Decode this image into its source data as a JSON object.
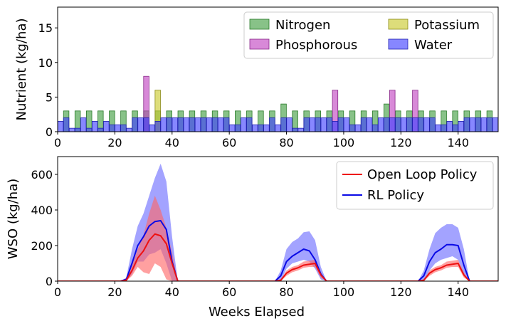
{
  "chart_data": [
    {
      "type": "bar",
      "ylabel": "Nutrient (kg/ha)",
      "xlim": [
        0,
        154
      ],
      "ylim": [
        0,
        18
      ],
      "x_ticks": [
        "0",
        "20",
        "40",
        "60",
        "80",
        "100",
        "120",
        "140"
      ],
      "y_ticks": [
        "0",
        "5",
        "10",
        "15"
      ],
      "legend_position": "top-right",
      "legend_columns": 2,
      "series": [
        {
          "name": "Nitrogen",
          "color": "#3f9c3f",
          "edge": "#2a7a2a",
          "x": [
            3,
            5,
            7,
            9,
            11,
            13,
            15,
            17,
            19,
            21,
            23,
            25,
            27,
            29,
            31,
            33,
            35,
            37,
            39,
            41,
            43,
            45,
            47,
            49,
            51,
            53,
            55,
            57,
            59,
            61,
            63,
            65,
            67,
            69,
            71,
            73,
            75,
            77,
            79,
            81,
            83,
            85,
            87,
            89,
            91,
            93,
            95,
            97,
            99,
            101,
            103,
            105,
            107,
            109,
            111,
            113,
            115,
            117,
            119,
            121,
            123,
            125,
            127,
            129,
            131,
            133,
            135,
            137,
            139,
            141,
            143,
            145,
            147,
            149,
            151,
            153
          ],
          "values": [
            3,
            0,
            3,
            0,
            3,
            0,
            3,
            0,
            3,
            0,
            3,
            0,
            3,
            0,
            3,
            0,
            3,
            0,
            3,
            0,
            3,
            0,
            3,
            0,
            3,
            0,
            3,
            0,
            3,
            0,
            3,
            0,
            3,
            0,
            3,
            0,
            3,
            0,
            4,
            0,
            3,
            0,
            3,
            0,
            3,
            0,
            3,
            0,
            3,
            0,
            3,
            0,
            3,
            0,
            3,
            0,
            4,
            0,
            3,
            0,
            3,
            0,
            3,
            0,
            3,
            0,
            3,
            0,
            3,
            0,
            3,
            0,
            3,
            0,
            3,
            0
          ]
        },
        {
          "name": "Phosphorous",
          "color": "#c040c0",
          "edge": "#8a2a8a",
          "x": [
            3,
            5,
            7,
            9,
            11,
            13,
            15,
            17,
            19,
            21,
            23,
            25,
            27,
            29,
            31,
            33,
            35,
            37,
            39,
            41,
            43,
            45,
            47,
            49,
            51,
            53,
            55,
            57,
            59,
            61,
            63,
            65,
            67,
            69,
            71,
            73,
            75,
            77,
            79,
            81,
            83,
            85,
            87,
            89,
            91,
            93,
            95,
            97,
            99,
            101,
            103,
            105,
            107,
            109,
            111,
            113,
            115,
            117,
            119,
            121,
            123,
            125,
            127,
            129,
            131,
            133,
            135,
            137,
            139,
            141,
            143,
            145,
            147,
            149,
            151,
            153
          ],
          "values": [
            0,
            0,
            0,
            0,
            0,
            0,
            0,
            0,
            0,
            0,
            0,
            0,
            0,
            0,
            8,
            0,
            0,
            0,
            0,
            0,
            0,
            0,
            0,
            0,
            0,
            0,
            0,
            0,
            0,
            0,
            0,
            0,
            0,
            0,
            0,
            0,
            0,
            0,
            0,
            0,
            0,
            0,
            0,
            0,
            0,
            0,
            0,
            6,
            0,
            0,
            0,
            0,
            0,
            0,
            0,
            0,
            0,
            6,
            0,
            0,
            0,
            6,
            0,
            0,
            0,
            0,
            0,
            0,
            0,
            0,
            0,
            0,
            0,
            0,
            0,
            0
          ]
        },
        {
          "name": "Potassium",
          "color": "#c8c828",
          "edge": "#8a8a1a",
          "x": [
            3,
            5,
            7,
            9,
            11,
            13,
            15,
            17,
            19,
            21,
            23,
            25,
            27,
            29,
            31,
            33,
            35,
            37,
            39,
            41,
            43,
            45,
            47,
            49,
            51,
            53,
            55,
            57,
            59,
            61,
            63,
            65,
            67,
            69,
            71,
            73,
            75,
            77,
            79,
            81,
            83,
            85,
            87,
            89,
            91,
            93,
            95,
            97,
            99,
            101,
            103,
            105,
            107,
            109,
            111,
            113,
            115,
            117,
            119,
            121,
            123,
            125,
            127,
            129,
            131,
            133,
            135,
            137,
            139,
            141,
            143,
            145,
            147,
            149,
            151,
            153
          ],
          "values": [
            0,
            0,
            0,
            0,
            0,
            0,
            0,
            0,
            0,
            0,
            0,
            0,
            0,
            0,
            0,
            0,
            6,
            0,
            0,
            0,
            0,
            0,
            0,
            0,
            0,
            0,
            0,
            0,
            0,
            0,
            0,
            0,
            0,
            0,
            0,
            0,
            0,
            0,
            0,
            0,
            0,
            0,
            0,
            0,
            0,
            0,
            0,
            0,
            0,
            0,
            0,
            0,
            0,
            0,
            0,
            0,
            0,
            0,
            0,
            0,
            0,
            0,
            0,
            0,
            0,
            0,
            0,
            0,
            0,
            0,
            0,
            0,
            0,
            0,
            0,
            0
          ]
        },
        {
          "name": "Water",
          "color": "#3d3dff",
          "edge": "#2020b0",
          "x": [
            1,
            3,
            5,
            7,
            9,
            11,
            13,
            15,
            17,
            19,
            21,
            23,
            25,
            27,
            29,
            31,
            33,
            35,
            37,
            39,
            41,
            43,
            45,
            47,
            49,
            51,
            53,
            55,
            57,
            59,
            61,
            63,
            65,
            67,
            69,
            71,
            73,
            75,
            77,
            79,
            81,
            83,
            85,
            87,
            89,
            91,
            93,
            95,
            97,
            99,
            101,
            103,
            105,
            107,
            109,
            111,
            113,
            115,
            117,
            119,
            121,
            123,
            125,
            127,
            129,
            131,
            133,
            135,
            137,
            139,
            141,
            143,
            145,
            147,
            149,
            151,
            153
          ],
          "values": [
            1.5,
            2,
            0.5,
            0.5,
            2,
            0.5,
            1.5,
            0.5,
            1.5,
            1,
            1,
            1,
            0.5,
            2,
            2,
            2,
            1,
            1.5,
            2,
            2,
            2,
            2,
            2,
            2,
            2,
            2,
            2,
            2,
            2,
            2,
            1,
            1,
            2,
            2,
            1,
            1,
            1,
            2,
            1,
            2,
            2,
            0.5,
            0.5,
            2,
            2,
            2,
            2,
            2,
            1.5,
            2,
            2,
            1,
            1,
            2,
            2,
            1,
            2,
            2,
            2,
            2,
            2,
            2,
            2,
            2,
            2,
            2,
            1,
            1,
            1.5,
            1,
            1.5,
            2,
            2,
            2,
            2,
            2,
            2
          ]
        }
      ]
    },
    {
      "type": "line",
      "xlabel": "Weeks Elapsed",
      "ylabel": "WSO (kg/ha)",
      "xlim": [
        0,
        154
      ],
      "ylim": [
        0,
        700
      ],
      "x_ticks": [
        "0",
        "20",
        "40",
        "60",
        "80",
        "100",
        "120",
        "140"
      ],
      "y_ticks": [
        "0",
        "200",
        "400",
        "600"
      ],
      "legend_position": "top-right",
      "series": [
        {
          "name": "Open Loop Policy",
          "color": "#ee1111",
          "band_color": "#ff6666",
          "x": [
            0,
            22,
            24,
            26,
            28,
            30,
            32,
            34,
            36,
            38,
            40,
            42,
            44,
            74,
            76,
            78,
            80,
            82,
            84,
            86,
            88,
            90,
            92,
            94,
            126,
            128,
            130,
            132,
            134,
            136,
            138,
            140,
            142,
            144,
            146,
            154
          ],
          "mean": [
            0,
            0,
            5,
            60,
            130,
            170,
            230,
            265,
            255,
            210,
            100,
            0,
            0,
            0,
            0,
            5,
            45,
            65,
            75,
            90,
            95,
            100,
            35,
            0,
            0,
            5,
            45,
            65,
            75,
            90,
            95,
            100,
            35,
            0,
            0,
            0
          ],
          "lower": [
            0,
            0,
            0,
            30,
            80,
            50,
            40,
            100,
            80,
            10,
            0,
            0,
            0,
            0,
            0,
            0,
            30,
            50,
            60,
            75,
            80,
            80,
            20,
            0,
            0,
            0,
            30,
            50,
            60,
            75,
            80,
            80,
            20,
            0,
            0,
            0
          ],
          "upper": [
            0,
            0,
            10,
            90,
            180,
            260,
            380,
            480,
            400,
            300,
            160,
            0,
            0,
            0,
            0,
            10,
            60,
            80,
            90,
            110,
            115,
            120,
            50,
            0,
            0,
            10,
            60,
            80,
            90,
            110,
            115,
            120,
            50,
            0,
            0,
            0
          ]
        },
        {
          "name": "RL Policy",
          "color": "#0a0ae6",
          "band_color": "#6a6aff",
          "x": [
            0,
            22,
            24,
            26,
            28,
            30,
            32,
            34,
            36,
            38,
            40,
            42,
            44,
            74,
            76,
            78,
            80,
            82,
            84,
            86,
            88,
            90,
            92,
            94,
            126,
            128,
            130,
            132,
            134,
            136,
            138,
            140,
            142,
            144,
            146,
            154
          ],
          "mean": [
            0,
            0,
            10,
            100,
            200,
            250,
            310,
            335,
            340,
            290,
            110,
            0,
            0,
            0,
            0,
            30,
            110,
            140,
            160,
            180,
            170,
            120,
            40,
            0,
            0,
            30,
            110,
            160,
            180,
            205,
            205,
            200,
            90,
            0,
            0,
            0
          ],
          "lower": [
            0,
            0,
            0,
            40,
            110,
            110,
            150,
            160,
            180,
            100,
            0,
            0,
            0,
            0,
            0,
            0,
            70,
            100,
            110,
            120,
            110,
            70,
            10,
            0,
            0,
            0,
            60,
            100,
            120,
            130,
            140,
            120,
            40,
            0,
            0,
            0
          ],
          "upper": [
            0,
            0,
            20,
            180,
            310,
            380,
            480,
            580,
            660,
            560,
            250,
            0,
            0,
            0,
            0,
            60,
            180,
            220,
            240,
            275,
            280,
            230,
            80,
            0,
            0,
            60,
            180,
            270,
            300,
            320,
            320,
            300,
            180,
            0,
            0,
            0
          ]
        }
      ]
    }
  ]
}
